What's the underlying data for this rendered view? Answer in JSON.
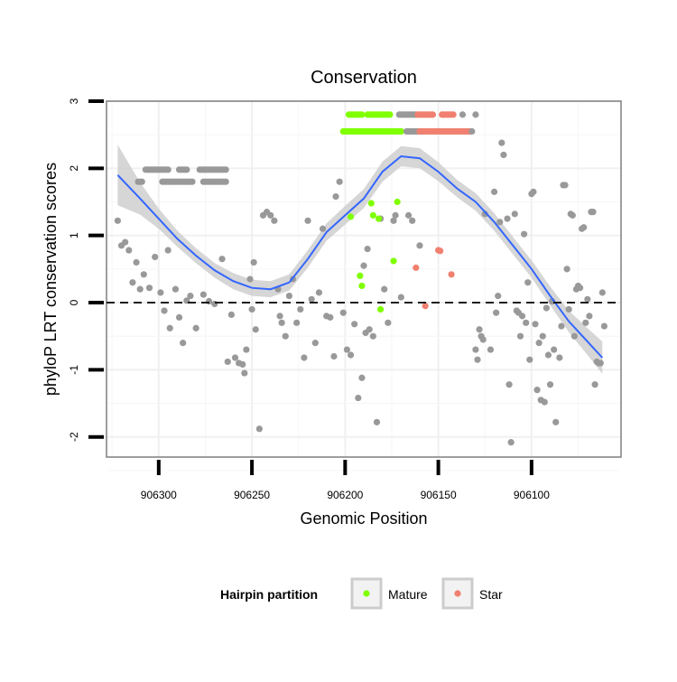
{
  "chart_data": {
    "type": "scatter",
    "title": "Conservation",
    "xlabel": "Genomic Position",
    "ylabel": "phyloP LRT conservation scores",
    "x_reversed": true,
    "xlim": [
      906328,
      906052
    ],
    "ylim": [
      -2.3,
      3.0
    ],
    "x_ticks": [
      906300,
      906250,
      906200,
      906150,
      906100
    ],
    "y_ticks": [
      3,
      2,
      1,
      0,
      -1,
      -2
    ],
    "reference_line": {
      "y": 0,
      "style": "dashed"
    },
    "legend": {
      "title": "Hairpin partition",
      "placement": "bottom",
      "entries": [
        {
          "label": "Mature",
          "color": "#7fff00"
        },
        {
          "label": "Star",
          "color": "#f08070"
        }
      ]
    },
    "colors": {
      "other": "#999999",
      "mature": "#7fff00",
      "star": "#f08070",
      "smooth": "#3366ff",
      "ribbon": "#cccccc"
    },
    "hairpin_band_y": [
      2.55,
      2.8
    ],
    "hairpin_segments": [
      {
        "group": "other",
        "y": 1.98,
        "from": 906307,
        "to": 906295
      },
      {
        "group": "other",
        "y": 1.98,
        "from": 906289,
        "to": 906285
      },
      {
        "group": "other",
        "y": 1.98,
        "from": 906278,
        "to": 906264
      },
      {
        "group": "other",
        "y": 1.8,
        "from": 906311,
        "to": 906309
      },
      {
        "group": "other",
        "y": 1.8,
        "from": 906298,
        "to": 906282
      },
      {
        "group": "other",
        "y": 1.8,
        "from": 906276,
        "to": 906264
      },
      {
        "group": "mature",
        "y": 2.8,
        "from": 906198,
        "to": 906191
      },
      {
        "group": "mature",
        "y": 2.8,
        "from": 906188,
        "to": 906176
      },
      {
        "group": "mature",
        "y": 2.55,
        "from": 906201,
        "to": 906170
      },
      {
        "group": "other",
        "y": 2.8,
        "from": 906171,
        "to": 906162
      },
      {
        "group": "star",
        "y": 2.8,
        "from": 906161,
        "to": 906153
      },
      {
        "group": "star",
        "y": 2.8,
        "from": 906148,
        "to": 906142
      },
      {
        "group": "other",
        "y": 2.8,
        "from": 906137,
        "to": 906137
      },
      {
        "group": "other",
        "y": 2.8,
        "from": 906130,
        "to": 906130
      },
      {
        "group": "other",
        "y": 2.55,
        "from": 906167,
        "to": 906159
      },
      {
        "group": "star",
        "y": 2.55,
        "from": 906160,
        "to": 906142
      },
      {
        "group": "star",
        "y": 2.55,
        "from": 906141,
        "to": 906133
      },
      {
        "group": "other",
        "y": 2.55,
        "from": 906132,
        "to": 906132
      }
    ],
    "smooth": {
      "x": [
        906322,
        906310,
        906300,
        906290,
        906280,
        906270,
        906260,
        906250,
        906240,
        906230,
        906220,
        906210,
        906200,
        906190,
        906180,
        906170,
        906160,
        906150,
        906140,
        906130,
        906120,
        906110,
        906100,
        906090,
        906080,
        906070,
        906062
      ],
      "y": [
        1.9,
        1.55,
        1.25,
        0.95,
        0.7,
        0.48,
        0.32,
        0.22,
        0.2,
        0.3,
        0.65,
        1.05,
        1.3,
        1.55,
        1.95,
        2.18,
        2.15,
        1.95,
        1.7,
        1.5,
        1.2,
        0.85,
        0.5,
        0.1,
        -0.28,
        -0.58,
        -0.82
      ],
      "ribbon_halfwidth": [
        0.45,
        0.24,
        0.15,
        0.12,
        0.11,
        0.11,
        0.12,
        0.12,
        0.12,
        0.12,
        0.13,
        0.13,
        0.14,
        0.14,
        0.15,
        0.15,
        0.15,
        0.14,
        0.13,
        0.13,
        0.13,
        0.13,
        0.13,
        0.14,
        0.16,
        0.2,
        0.24
      ]
    },
    "points": {
      "other": [
        [
          906322,
          1.22
        ],
        [
          906320,
          0.85
        ],
        [
          906318,
          0.9
        ],
        [
          906316,
          0.78
        ],
        [
          906314,
          0.3
        ],
        [
          906312,
          0.6
        ],
        [
          906310,
          0.2
        ],
        [
          906308,
          0.42
        ],
        [
          906305,
          0.22
        ],
        [
          906302,
          0.68
        ],
        [
          906299,
          0.15
        ],
        [
          906297,
          -0.12
        ],
        [
          906295,
          0.78
        ],
        [
          906294,
          -0.38
        ],
        [
          906291,
          0.2
        ],
        [
          906289,
          -0.22
        ],
        [
          906287,
          -0.6
        ],
        [
          906285,
          0.03
        ],
        [
          906283,
          0.1
        ],
        [
          906280,
          -0.38
        ],
        [
          906276,
          0.12
        ],
        [
          906273,
          0.02
        ],
        [
          906270,
          -0.02
        ],
        [
          906266,
          0.65
        ],
        [
          906263,
          -0.88
        ],
        [
          906261,
          -0.18
        ],
        [
          906259,
          -0.82
        ],
        [
          906257,
          -0.9
        ],
        [
          906255,
          -0.92
        ],
        [
          906254,
          -1.05
        ],
        [
          906253,
          -0.7
        ],
        [
          906251,
          0.35
        ],
        [
          906250,
          -0.1
        ],
        [
          906249,
          0.6
        ],
        [
          906248,
          -0.4
        ],
        [
          906246,
          -1.88
        ],
        [
          906244,
          1.3
        ],
        [
          906242,
          1.35
        ],
        [
          906240,
          1.3
        ],
        [
          906238,
          1.22
        ],
        [
          906236,
          0.2
        ],
        [
          906235,
          -0.2
        ],
        [
          906234,
          -0.3
        ],
        [
          906232,
          -0.5
        ],
        [
          906230,
          0.1
        ],
        [
          906228,
          0.35
        ],
        [
          906226,
          -0.3
        ],
        [
          906224,
          -0.1
        ],
        [
          906222,
          -0.82
        ],
        [
          906220,
          1.22
        ],
        [
          906218,
          0.05
        ],
        [
          906216,
          -0.6
        ],
        [
          906214,
          0.15
        ],
        [
          906212,
          1.1
        ],
        [
          906210,
          -0.2
        ],
        [
          906208,
          -0.22
        ],
        [
          906206,
          -0.8
        ],
        [
          906205,
          1.58
        ],
        [
          906203,
          1.8
        ],
        [
          906201,
          -0.15
        ],
        [
          906199,
          -0.7
        ],
        [
          906197,
          -0.78
        ],
        [
          906195,
          -0.32
        ],
        [
          906193,
          -1.42
        ],
        [
          906191,
          -1.12
        ],
        [
          906190,
          0.55
        ],
        [
          906189,
          -0.45
        ],
        [
          906188,
          0.8
        ],
        [
          906187,
          -0.4
        ],
        [
          906185,
          -0.5
        ],
        [
          906183,
          -1.78
        ],
        [
          906181,
          1.25
        ],
        [
          906179,
          0.2
        ],
        [
          906177,
          -0.3
        ],
        [
          906174,
          1.22
        ],
        [
          906173,
          1.3
        ],
        [
          906170,
          0.08
        ],
        [
          906166,
          1.3
        ],
        [
          906164,
          1.22
        ],
        [
          906160,
          0.85
        ],
        [
          906130,
          -0.7
        ],
        [
          906129,
          -0.85
        ],
        [
          906128,
          -0.4
        ],
        [
          906127,
          -0.5
        ],
        [
          906126,
          -0.55
        ],
        [
          906125,
          1.32
        ],
        [
          906122,
          -0.7
        ],
        [
          906120,
          1.65
        ],
        [
          906119,
          -0.15
        ],
        [
          906118,
          0.1
        ],
        [
          906117,
          1.2
        ],
        [
          906116,
          2.38
        ],
        [
          906115,
          2.2
        ],
        [
          906113,
          1.25
        ],
        [
          906112,
          -1.22
        ],
        [
          906111,
          -2.08
        ],
        [
          906109,
          1.32
        ],
        [
          906108,
          -0.12
        ],
        [
          906107,
          -0.15
        ],
        [
          906106,
          -0.5
        ],
        [
          906105,
          -0.2
        ],
        [
          906104,
          1.02
        ],
        [
          906103,
          -0.3
        ],
        [
          906102,
          0.3
        ],
        [
          906101,
          -0.85
        ],
        [
          906100,
          1.62
        ],
        [
          906099,
          1.65
        ],
        [
          906098,
          -0.32
        ],
        [
          906097,
          -1.3
        ],
        [
          906096,
          -0.6
        ],
        [
          906095,
          -1.45
        ],
        [
          906094,
          -0.5
        ],
        [
          906093,
          -1.48
        ],
        [
          906092,
          -0.08
        ],
        [
          906091,
          -0.78
        ],
        [
          906090,
          -1.22
        ],
        [
          906089,
          0.02
        ],
        [
          906088,
          -0.7
        ],
        [
          906087,
          -1.78
        ],
        [
          906085,
          -0.82
        ],
        [
          906084,
          -0.35
        ],
        [
          906083,
          1.75
        ],
        [
          906082,
          1.75
        ],
        [
          906081,
          0.5
        ],
        [
          906080,
          -0.1
        ],
        [
          906079,
          1.32
        ],
        [
          906078,
          1.3
        ],
        [
          906077,
          -0.5
        ],
        [
          906076,
          0.2
        ],
        [
          906075,
          0.25
        ],
        [
          906074,
          0.22
        ],
        [
          906073,
          1.1
        ],
        [
          906072,
          1.12
        ],
        [
          906071,
          -0.3
        ],
        [
          906070,
          0.05
        ],
        [
          906069,
          -0.2
        ],
        [
          906068,
          1.35
        ],
        [
          906067,
          1.35
        ],
        [
          906066,
          -1.22
        ],
        [
          906065,
          -0.88
        ],
        [
          906064,
          -0.9
        ],
        [
          906063,
          -0.9
        ],
        [
          906062,
          0.15
        ],
        [
          906061,
          -0.35
        ]
      ],
      "mature": [
        [
          906197,
          1.28
        ],
        [
          906192,
          0.4
        ],
        [
          906191,
          0.25
        ],
        [
          906186,
          1.48
        ],
        [
          906185,
          1.3
        ],
        [
          906182,
          1.25
        ],
        [
          906181,
          -0.1
        ],
        [
          906174,
          0.62
        ],
        [
          906172,
          1.5
        ]
      ],
      "star": [
        [
          906162,
          0.52
        ],
        [
          906157,
          -0.05
        ],
        [
          906150,
          0.78
        ],
        [
          906149,
          0.77
        ],
        [
          906143,
          0.42
        ]
      ]
    }
  }
}
